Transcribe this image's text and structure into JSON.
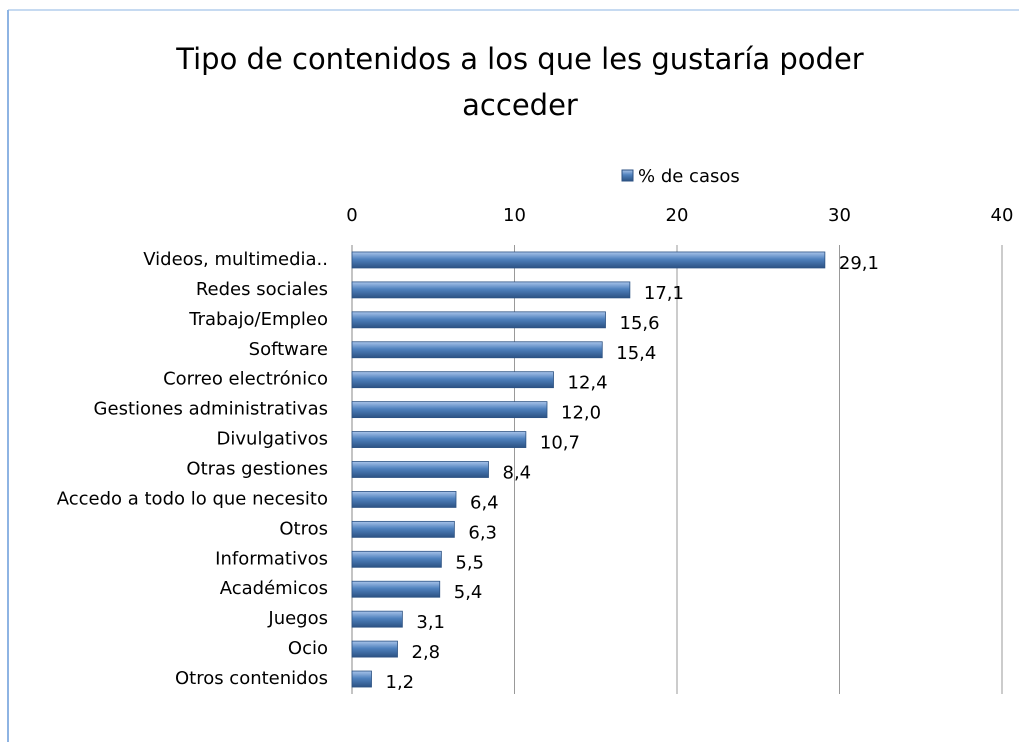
{
  "chart_data": {
    "type": "bar",
    "orientation": "horizontal",
    "title": "Tipo de contenidos a los que les gustaría poder acceder",
    "categories": [
      "Videos, multimedia..",
      "Redes sociales",
      "Trabajo/Empleo",
      "Software",
      "Correo electrónico",
      "Gestiones administrativas",
      "Divulgativos",
      "Otras gestiones",
      "Accedo a todo lo que necesito",
      "Otros",
      "Informativos",
      "Académicos",
      "Juegos",
      "Ocio",
      "Otros contenidos"
    ],
    "series": [
      {
        "name": "% de casos",
        "color": "#4f81bd",
        "values": [
          29.1,
          17.1,
          15.6,
          15.4,
          12.4,
          12.0,
          10.7,
          8.4,
          6.4,
          6.3,
          5.5,
          5.4,
          3.1,
          2.8,
          1.2
        ],
        "value_labels": [
          "29,1",
          "17,1",
          "15,6",
          "15,4",
          "12,4",
          "12,0",
          "10,7",
          "8,4",
          "6,4",
          "6,3",
          "5,5",
          "5,4",
          "3,1",
          "2,8",
          "1,2"
        ]
      }
    ],
    "xlim": [
      0,
      40
    ],
    "xticks": [
      0,
      10,
      20,
      30,
      40
    ],
    "grid": true,
    "legend": "top"
  }
}
